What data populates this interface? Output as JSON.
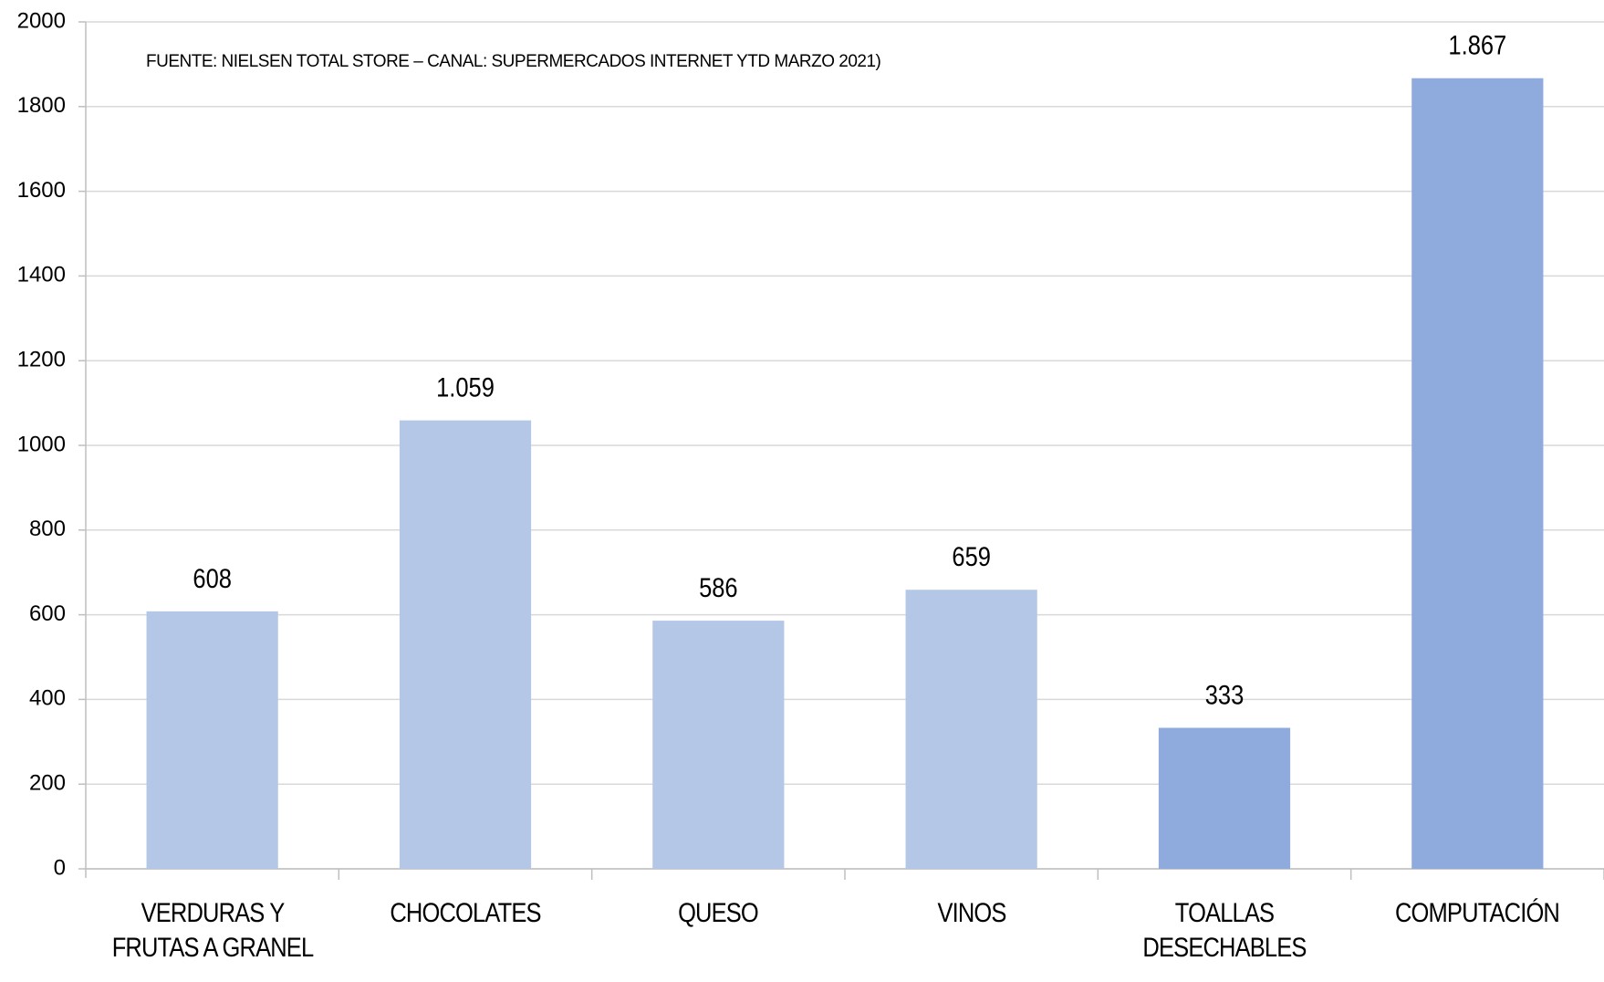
{
  "chart_data": {
    "type": "bar",
    "annotation": "FUENTE: NIELSEN TOTAL STORE – CANAL: SUPERMERCADOS INTERNET YTD MARZO 2021)",
    "categories": [
      "VERDURAS Y FRUTAS A GRANEL",
      "CHOCOLATES",
      "QUESO",
      "VINOS",
      "TOALLAS DESECHABLES",
      "COMPUTACIÓN"
    ],
    "values": [
      608,
      1059,
      586,
      659,
      333,
      1867
    ],
    "value_labels": [
      "608",
      "1.059",
      "586",
      "659",
      "333",
      "1.867"
    ],
    "colors": [
      "#b4c7e7",
      "#b4c7e7",
      "#b4c7e7",
      "#b4c7e7",
      "#8faadc",
      "#8faadc"
    ],
    "ylim": [
      0,
      2000
    ],
    "yticks": [
      0,
      200,
      400,
      600,
      800,
      1000,
      1200,
      1400,
      1600,
      1800,
      2000
    ],
    "grid": true
  }
}
